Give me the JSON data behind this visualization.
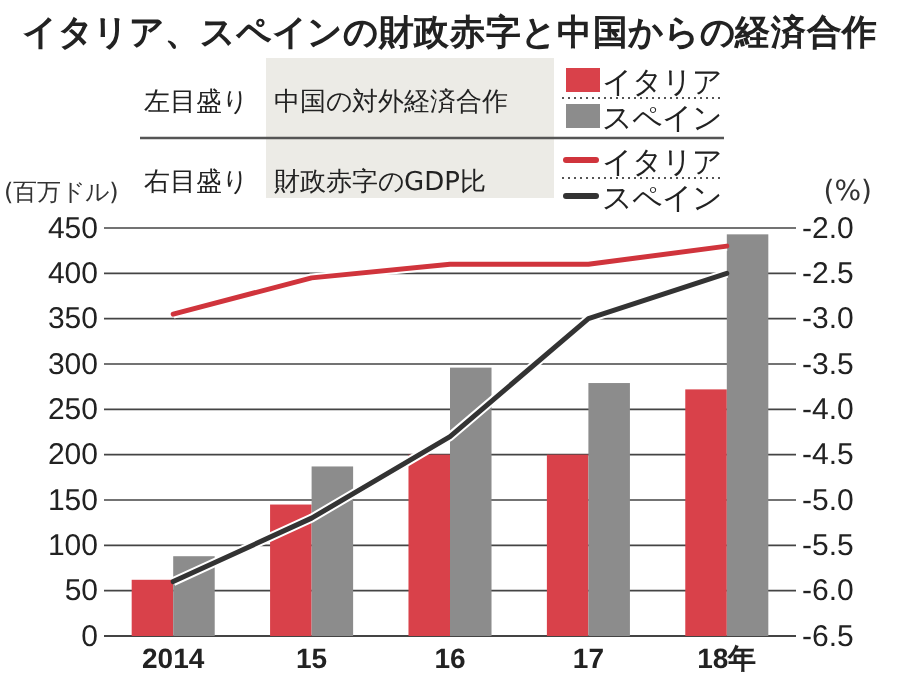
{
  "chart_data": {
    "type": "bar",
    "title": "イタリア、スペインの財政赤字と中国からの経済合作",
    "ylabel": "(百万ドル)",
    "y2label": "(%)",
    "annotations": [
      "左目盛り",
      "中国の対外経済合作",
      "右目盛り",
      "財政赤字のGDP比"
    ],
    "categories": [
      "2014",
      "15",
      "16",
      "17",
      "18年"
    ],
    "series": [
      {
        "name": "イタリア",
        "color": "#d9414a",
        "values": [
          62,
          145,
          200,
          200,
          272
        ]
      },
      {
        "name": "スペイン",
        "color": "#8c8c8c",
        "values": [
          88,
          187,
          296,
          279,
          443
        ]
      },
      {
        "name": "イタリア",
        "type": "line",
        "axis": "y2",
        "color": "#d0343c",
        "values": [
          -2.95,
          -2.55,
          -2.4,
          -2.4,
          -2.2
        ]
      },
      {
        "name": "スペイン",
        "type": "line",
        "axis": "y2",
        "color": "#333333",
        "values": [
          -5.9,
          -5.2,
          -4.3,
          -3.0,
          -2.5
        ]
      }
    ],
    "ylim": [
      0,
      450
    ],
    "yticks": [
      0,
      50,
      100,
      150,
      200,
      250,
      300,
      350,
      400,
      450
    ],
    "y2lim": [
      -6.5,
      -2.0
    ],
    "y2ticks": [
      {
        "value": -6.5,
        "label": "-6.5"
      },
      {
        "value": -6,
        "label": "-6.0"
      },
      {
        "value": -5.5,
        "label": "-5.5"
      },
      {
        "value": -5,
        "label": "-5.0"
      },
      {
        "value": -4.5,
        "label": "-4.5"
      },
      {
        "value": -4,
        "label": "-4.0"
      },
      {
        "value": -3.5,
        "label": "-3.5"
      },
      {
        "value": -3,
        "label": "-3.0"
      },
      {
        "value": -2.5,
        "label": "-2.5"
      },
      {
        "value": -2,
        "label": "-2.0"
      }
    ],
    "grid": "y",
    "legend": "top",
    "marker": "none",
    "line_style": "solid"
  }
}
